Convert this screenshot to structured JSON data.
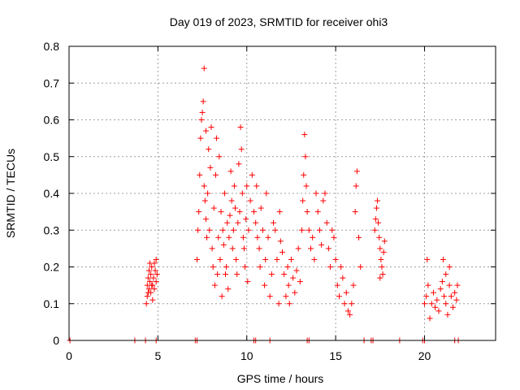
{
  "chart_data": {
    "type": "scatter",
    "title": "Day 019 of 2023, SRMTID for receiver ohi3",
    "xlabel": "GPS time / hours",
    "ylabel": "SRMTID / TECUs",
    "xlim": [
      0,
      24
    ],
    "ylim": [
      0,
      0.8
    ],
    "xticks": [
      0,
      5,
      10,
      15,
      20
    ],
    "xtick_labels": [
      "0",
      "5",
      "10",
      "15",
      "20"
    ],
    "yticks": [
      0,
      0.1,
      0.2,
      0.3,
      0.4,
      0.5,
      0.6,
      0.7,
      0.8
    ],
    "ytick_labels": [
      "0",
      "0.1",
      "0.2",
      "0.3",
      "0.4",
      "0.5",
      "0.6",
      "0.7",
      "0.8"
    ],
    "grid": true,
    "marker": "plus",
    "color": "#ff0000",
    "series": [
      {
        "name": "SRMTID",
        "points": [
          [
            0.05,
            0
          ],
          [
            3.7,
            0
          ],
          [
            4.3,
            0
          ],
          [
            4.9,
            0
          ],
          [
            7.1,
            0
          ],
          [
            7.2,
            0
          ],
          [
            10.4,
            0
          ],
          [
            10.5,
            0
          ],
          [
            11.3,
            0
          ],
          [
            13.4,
            0
          ],
          [
            13.5,
            0
          ],
          [
            16.6,
            0
          ],
          [
            17.0,
            0
          ],
          [
            17.1,
            0
          ],
          [
            18.6,
            0
          ],
          [
            19.9,
            0
          ],
          [
            20.0,
            0
          ],
          [
            21.7,
            0
          ],
          [
            21.9,
            0
          ],
          [
            4.35,
            0.1
          ],
          [
            4.4,
            0.12
          ],
          [
            4.4,
            0.15
          ],
          [
            4.45,
            0.17
          ],
          [
            4.5,
            0.14
          ],
          [
            4.5,
            0.19
          ],
          [
            4.55,
            0.16
          ],
          [
            4.6,
            0.13
          ],
          [
            4.6,
            0.18
          ],
          [
            4.65,
            0.2
          ],
          [
            4.7,
            0.15
          ],
          [
            4.7,
            0.11
          ],
          [
            4.75,
            0.17
          ],
          [
            4.8,
            0.21
          ],
          [
            4.8,
            0.14
          ],
          [
            4.85,
            0.19
          ],
          [
            4.9,
            0.16
          ],
          [
            4.9,
            0.22
          ],
          [
            4.95,
            0.18
          ],
          [
            4.55,
            0.21
          ],
          [
            4.45,
            0.13
          ],
          [
            4.65,
            0.15
          ],
          [
            7.2,
            0.22
          ],
          [
            7.25,
            0.3
          ],
          [
            7.3,
            0.35
          ],
          [
            7.35,
            0.45
          ],
          [
            7.4,
            0.55
          ],
          [
            7.45,
            0.6
          ],
          [
            7.5,
            0.62
          ],
          [
            7.55,
            0.65
          ],
          [
            7.6,
            0.74
          ],
          [
            7.6,
            0.42
          ],
          [
            7.65,
            0.38
          ],
          [
            7.7,
            0.33
          ],
          [
            7.7,
            0.57
          ],
          [
            7.75,
            0.28
          ],
          [
            7.8,
            0.4
          ],
          [
            7.85,
            0.52
          ],
          [
            7.9,
            0.3
          ],
          [
            7.95,
            0.47
          ],
          [
            8.0,
            0.58
          ],
          [
            8.05,
            0.25
          ],
          [
            8.1,
            0.2
          ],
          [
            8.15,
            0.36
          ],
          [
            8.2,
            0.15
          ],
          [
            8.25,
            0.45
          ],
          [
            8.3,
            0.55
          ],
          [
            8.35,
            0.18
          ],
          [
            8.4,
            0.28
          ],
          [
            8.45,
            0.5
          ],
          [
            8.5,
            0.22
          ],
          [
            8.55,
            0.35
          ],
          [
            8.6,
            0.12
          ],
          [
            8.65,
            0.3
          ],
          [
            8.7,
            0.26
          ],
          [
            8.75,
            0.4
          ],
          [
            8.8,
            0.18
          ],
          [
            8.85,
            0.2
          ],
          [
            8.9,
            0.32
          ],
          [
            8.95,
            0.14
          ],
          [
            9.0,
            0.28
          ],
          [
            9.05,
            0.34
          ],
          [
            9.1,
            0.46
          ],
          [
            9.15,
            0.38
          ],
          [
            9.2,
            0.25
          ],
          [
            9.25,
            0.3
          ],
          [
            9.3,
            0.42
          ],
          [
            9.35,
            0.36
          ],
          [
            9.4,
            0.22
          ],
          [
            9.45,
            0.18
          ],
          [
            9.5,
            0.32
          ],
          [
            9.55,
            0.48
          ],
          [
            9.6,
            0.35
          ],
          [
            9.65,
            0.58
          ],
          [
            9.7,
            0.52
          ],
          [
            9.75,
            0.4
          ],
          [
            9.8,
            0.28
          ],
          [
            9.85,
            0.25
          ],
          [
            9.9,
            0.2
          ],
          [
            9.95,
            0.33
          ],
          [
            10.0,
            0.42
          ],
          [
            10.05,
            0.16
          ],
          [
            10.1,
            0.3
          ],
          [
            10.2,
            0.38
          ],
          [
            10.3,
            0.45
          ],
          [
            10.4,
            0.35
          ],
          [
            10.5,
            0.32
          ],
          [
            10.55,
            0.42
          ],
          [
            10.6,
            0.28
          ],
          [
            10.7,
            0.25
          ],
          [
            10.75,
            0.2
          ],
          [
            10.8,
            0.36
          ],
          [
            10.9,
            0.3
          ],
          [
            11.0,
            0.15
          ],
          [
            11.05,
            0.22
          ],
          [
            11.1,
            0.4
          ],
          [
            11.2,
            0.28
          ],
          [
            11.3,
            0.12
          ],
          [
            11.4,
            0.18
          ],
          [
            11.5,
            0.32
          ],
          [
            11.6,
            0.3
          ],
          [
            11.7,
            0.22
          ],
          [
            11.8,
            0.1
          ],
          [
            11.85,
            0.35
          ],
          [
            11.9,
            0.27
          ],
          [
            12.0,
            0.24
          ],
          [
            12.1,
            0.18
          ],
          [
            12.2,
            0.12
          ],
          [
            12.3,
            0.2
          ],
          [
            12.35,
            0.15
          ],
          [
            12.4,
            0.1
          ],
          [
            12.5,
            0.22
          ],
          [
            12.6,
            0.17
          ],
          [
            12.7,
            0.13
          ],
          [
            12.8,
            0.19
          ],
          [
            12.9,
            0.25
          ],
          [
            13.0,
            0.16
          ],
          [
            13.1,
            0.3
          ],
          [
            13.15,
            0.38
          ],
          [
            13.2,
            0.45
          ],
          [
            13.25,
            0.56
          ],
          [
            13.3,
            0.5
          ],
          [
            13.35,
            0.42
          ],
          [
            13.4,
            0.35
          ],
          [
            13.5,
            0.3
          ],
          [
            13.6,
            0.25
          ],
          [
            13.7,
            0.28
          ],
          [
            13.8,
            0.22
          ],
          [
            13.9,
            0.4
          ],
          [
            14.0,
            0.35
          ],
          [
            14.1,
            0.3
          ],
          [
            14.2,
            0.26
          ],
          [
            14.3,
            0.38
          ],
          [
            14.4,
            0.4
          ],
          [
            14.5,
            0.32
          ],
          [
            14.6,
            0.25
          ],
          [
            14.7,
            0.2
          ],
          [
            14.8,
            0.3
          ],
          [
            14.9,
            0.28
          ],
          [
            15.0,
            0.22
          ],
          [
            15.1,
            0.15
          ],
          [
            15.2,
            0.12
          ],
          [
            15.3,
            0.2
          ],
          [
            15.4,
            0.17
          ],
          [
            15.5,
            0.1
          ],
          [
            15.6,
            0.13
          ],
          [
            15.7,
            0.08
          ],
          [
            15.8,
            0.07
          ],
          [
            15.9,
            0.1
          ],
          [
            16.0,
            0.15
          ],
          [
            16.1,
            0.35
          ],
          [
            16.15,
            0.42
          ],
          [
            16.2,
            0.46
          ],
          [
            16.3,
            0.28
          ],
          [
            16.4,
            0.2
          ],
          [
            17.2,
            0.3
          ],
          [
            17.25,
            0.33
          ],
          [
            17.3,
            0.36
          ],
          [
            17.35,
            0.38
          ],
          [
            17.4,
            0.32
          ],
          [
            17.45,
            0.28
          ],
          [
            17.5,
            0.25
          ],
          [
            17.55,
            0.22
          ],
          [
            17.6,
            0.2
          ],
          [
            17.65,
            0.18
          ],
          [
            17.7,
            0.24
          ],
          [
            17.75,
            0.27
          ],
          [
            17.5,
            0.17
          ],
          [
            20.0,
            0.1
          ],
          [
            20.1,
            0.12
          ],
          [
            20.15,
            0.22
          ],
          [
            20.2,
            0.15
          ],
          [
            20.3,
            0.06
          ],
          [
            20.4,
            0.1
          ],
          [
            20.5,
            0.13
          ],
          [
            20.6,
            0.09
          ],
          [
            20.7,
            0.11
          ],
          [
            20.8,
            0.08
          ],
          [
            20.9,
            0.14
          ],
          [
            21.0,
            0.16
          ],
          [
            21.05,
            0.22
          ],
          [
            21.1,
            0.12
          ],
          [
            21.2,
            0.1
          ],
          [
            21.3,
            0.07
          ],
          [
            21.4,
            0.15
          ],
          [
            21.5,
            0.12
          ],
          [
            21.6,
            0.09
          ],
          [
            21.7,
            0.13
          ],
          [
            21.8,
            0.11
          ],
          [
            21.85,
            0.15
          ],
          [
            21.4,
            0.2
          ],
          [
            21.2,
            0.18
          ]
        ]
      }
    ]
  }
}
